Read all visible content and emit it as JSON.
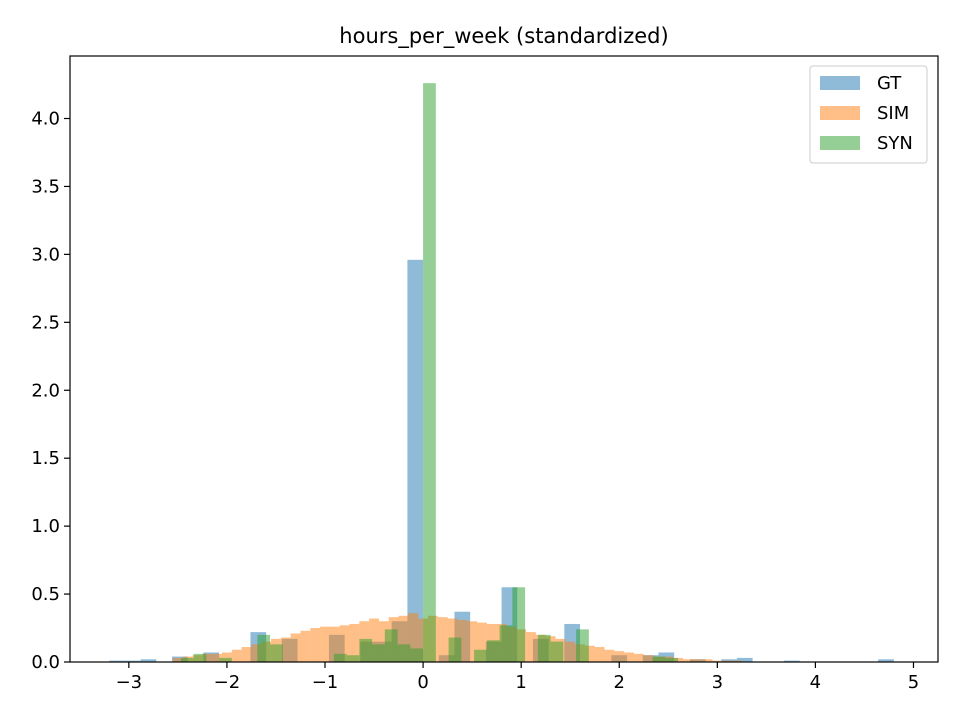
{
  "chart_data": {
    "type": "bar",
    "title": "hours_per_week (standardized)",
    "xlabel": "",
    "ylabel": "",
    "xlim": [
      -3.6,
      5.25
    ],
    "ylim": [
      0,
      4.46
    ],
    "xticks": [
      -3,
      -2,
      -1,
      0,
      1,
      2,
      3,
      4,
      5
    ],
    "xtick_labels": [
      "−3",
      "−2",
      "−1",
      "0",
      "1",
      "2",
      "3",
      "4",
      "5"
    ],
    "yticks": [
      0.0,
      0.5,
      1.0,
      1.5,
      2.0,
      2.5,
      3.0,
      3.5,
      4.0
    ],
    "ytick_labels": [
      "0.0",
      "0.5",
      "1.0",
      "1.5",
      "2.0",
      "2.5",
      "3.0",
      "3.5",
      "4.0"
    ],
    "grid": false,
    "legend": "top-right",
    "series": [
      {
        "name": "GT",
        "color": "#1f77b4",
        "alpha": 0.5,
        "bin_width": 0.16,
        "bins": [
          [
            -3.2,
            0.01
          ],
          [
            -3.04,
            0.01
          ],
          [
            -2.88,
            0.02
          ],
          [
            -2.56,
            0.04
          ],
          [
            -2.24,
            0.07
          ],
          [
            -1.76,
            0.22
          ],
          [
            -1.44,
            0.17
          ],
          [
            -0.96,
            0.2
          ],
          [
            -0.64,
            0.15
          ],
          [
            -0.48,
            0.15
          ],
          [
            -0.32,
            0.3
          ],
          [
            -0.16,
            2.96
          ],
          [
            0.16,
            0.05
          ],
          [
            0.32,
            0.37
          ],
          [
            0.64,
            0.15
          ],
          [
            0.8,
            0.55
          ],
          [
            1.12,
            0.17
          ],
          [
            1.44,
            0.28
          ],
          [
            1.92,
            0.05
          ],
          [
            2.24,
            0.05
          ],
          [
            2.4,
            0.07
          ],
          [
            2.72,
            0.02
          ],
          [
            3.04,
            0.02
          ],
          [
            3.2,
            0.03
          ],
          [
            3.68,
            0.01
          ],
          [
            4.64,
            0.02
          ]
        ]
      },
      {
        "name": "SIM",
        "color": "#ff7f0e",
        "alpha": 0.5,
        "bin_width": 0.1,
        "bins": [
          [
            -2.55,
            0.03
          ],
          [
            -2.45,
            0.04
          ],
          [
            -2.35,
            0.05
          ],
          [
            -2.25,
            0.06
          ],
          [
            -2.15,
            0.06
          ],
          [
            -2.05,
            0.07
          ],
          [
            -1.95,
            0.09
          ],
          [
            -1.85,
            0.11
          ],
          [
            -1.75,
            0.13
          ],
          [
            -1.65,
            0.15
          ],
          [
            -1.55,
            0.17
          ],
          [
            -1.45,
            0.18
          ],
          [
            -1.35,
            0.21
          ],
          [
            -1.25,
            0.23
          ],
          [
            -1.15,
            0.25
          ],
          [
            -1.05,
            0.26
          ],
          [
            -0.95,
            0.26
          ],
          [
            -0.85,
            0.27
          ],
          [
            -0.75,
            0.28
          ],
          [
            -0.65,
            0.3
          ],
          [
            -0.55,
            0.32
          ],
          [
            -0.45,
            0.3
          ],
          [
            -0.35,
            0.33
          ],
          [
            -0.25,
            0.34
          ],
          [
            -0.15,
            0.36
          ],
          [
            -0.05,
            0.32
          ],
          [
            0.05,
            0.34
          ],
          [
            0.15,
            0.33
          ],
          [
            0.25,
            0.32
          ],
          [
            0.35,
            0.31
          ],
          [
            0.45,
            0.3
          ],
          [
            0.55,
            0.29
          ],
          [
            0.65,
            0.28
          ],
          [
            0.75,
            0.28
          ],
          [
            0.85,
            0.26
          ],
          [
            0.95,
            0.24
          ],
          [
            1.05,
            0.22
          ],
          [
            1.15,
            0.2
          ],
          [
            1.25,
            0.19
          ],
          [
            1.35,
            0.17
          ],
          [
            1.45,
            0.15
          ],
          [
            1.55,
            0.13
          ],
          [
            1.65,
            0.12
          ],
          [
            1.75,
            0.11
          ],
          [
            1.85,
            0.09
          ],
          [
            1.95,
            0.08
          ],
          [
            2.05,
            0.07
          ],
          [
            2.15,
            0.06
          ],
          [
            2.25,
            0.05
          ],
          [
            2.35,
            0.04
          ],
          [
            2.45,
            0.04
          ],
          [
            2.55,
            0.03
          ],
          [
            2.65,
            0.02
          ],
          [
            2.75,
            0.02
          ],
          [
            2.85,
            0.02
          ],
          [
            2.95,
            0.01
          ],
          [
            3.05,
            0.01
          ],
          [
            3.15,
            0.01
          ]
        ]
      },
      {
        "name": "SYN",
        "color": "#2ca02c",
        "alpha": 0.5,
        "bin_width": 0.13,
        "bins": [
          [
            -2.47,
            0.03
          ],
          [
            -2.34,
            0.06
          ],
          [
            -2.08,
            0.03
          ],
          [
            -1.69,
            0.2
          ],
          [
            -1.56,
            0.13
          ],
          [
            -0.91,
            0.06
          ],
          [
            -0.78,
            0.05
          ],
          [
            -0.65,
            0.17
          ],
          [
            -0.52,
            0.13
          ],
          [
            -0.39,
            0.24
          ],
          [
            -0.26,
            0.13
          ],
          [
            -0.13,
            0.1
          ],
          [
            0.0,
            4.26
          ],
          [
            0.26,
            0.18
          ],
          [
            0.52,
            0.09
          ],
          [
            0.65,
            0.16
          ],
          [
            0.78,
            0.27
          ],
          [
            0.91,
            0.55
          ],
          [
            1.17,
            0.2
          ],
          [
            1.3,
            0.15
          ],
          [
            1.56,
            0.24
          ],
          [
            2.34,
            0.04
          ],
          [
            2.47,
            0.03
          ]
        ]
      }
    ]
  }
}
